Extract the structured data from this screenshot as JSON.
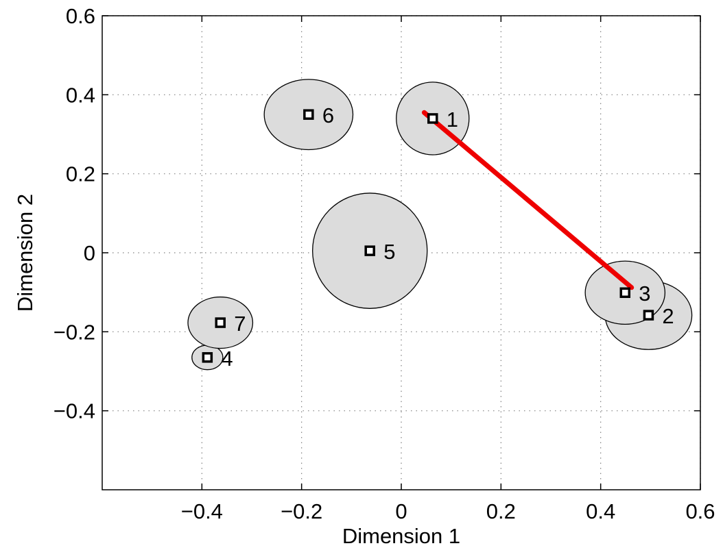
{
  "chart_data": {
    "type": "scatter",
    "title": "",
    "xlabel": "Dimension 1",
    "ylabel": "Dimension 2",
    "xlim": [
      -0.6,
      0.6
    ],
    "ylim": [
      -0.6,
      0.6
    ],
    "xticks": [
      -0.4,
      -0.2,
      0,
      0.2,
      0.4,
      0.6
    ],
    "xtick_labels": [
      "−0.4",
      "−0.2",
      "0",
      "0.2",
      "0.4",
      "0.6"
    ],
    "yticks": [
      -0.4,
      -0.2,
      0,
      0.2,
      0.4,
      0.6
    ],
    "ytick_labels": [
      "−0.4",
      "−0.2",
      "0",
      "0.2",
      "0.4",
      "0.6"
    ],
    "grid": true,
    "ellipse_fill": "#dcdcdc",
    "line_color": "#ee0000",
    "points": [
      {
        "label": "1",
        "x": 0.063,
        "y": 0.34,
        "rx": 0.073,
        "ry": 0.092
      },
      {
        "label": "2",
        "x": 0.496,
        "y": -0.158,
        "rx": 0.087,
        "ry": 0.087
      },
      {
        "label": "3",
        "x": 0.449,
        "y": -0.101,
        "rx": 0.08,
        "ry": 0.08
      },
      {
        "label": "4",
        "x": -0.389,
        "y": -0.265,
        "rx": 0.031,
        "ry": 0.031
      },
      {
        "label": "5",
        "x": -0.063,
        "y": 0.005,
        "rx": 0.115,
        "ry": 0.146
      },
      {
        "label": "6",
        "x": -0.186,
        "y": 0.35,
        "rx": 0.089,
        "ry": 0.089
      },
      {
        "label": "7",
        "x": -0.363,
        "y": -0.177,
        "rx": 0.065,
        "ry": 0.065
      }
    ],
    "connections": [
      {
        "from": [
          0.046,
          0.355
        ],
        "to": [
          0.462,
          -0.088
        ]
      }
    ]
  }
}
